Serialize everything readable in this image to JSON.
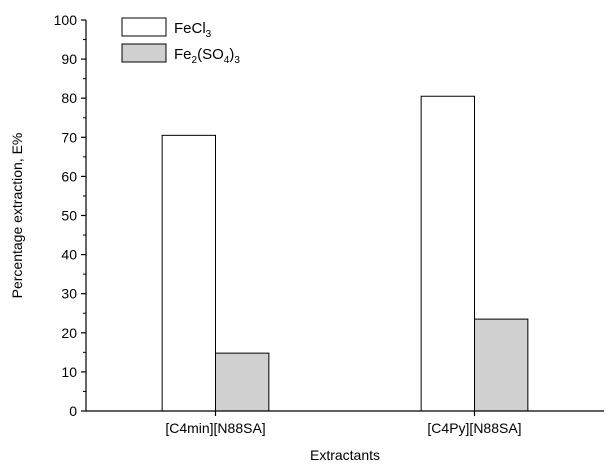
{
  "chart_data": {
    "type": "bar",
    "categories": [
      "[C4min][N88SA]",
      "[C4Py][N88SA]"
    ],
    "series": [
      {
        "name_parts": [
          {
            "t": "FeCl"
          },
          {
            "t": "3",
            "sub": true
          }
        ],
        "values": [
          70.5,
          80.5
        ],
        "color": "#ffffff"
      },
      {
        "name_parts": [
          {
            "t": "Fe"
          },
          {
            "t": "2",
            "sub": true
          },
          {
            "t": "(SO"
          },
          {
            "t": "4",
            "sub": true
          },
          {
            "t": ")"
          },
          {
            "t": "3",
            "sub": true
          }
        ],
        "values": [
          14.8,
          23.5
        ],
        "color": "#d0d0d0"
      }
    ],
    "xlabel": "Extractants",
    "ylabel": "Percentage extraction, E%",
    "ylim": [
      0,
      100
    ],
    "yticks": [
      0,
      10,
      20,
      30,
      40,
      50,
      60,
      70,
      80,
      90,
      100
    ],
    "legend_position": "top-left",
    "grid": false
  }
}
